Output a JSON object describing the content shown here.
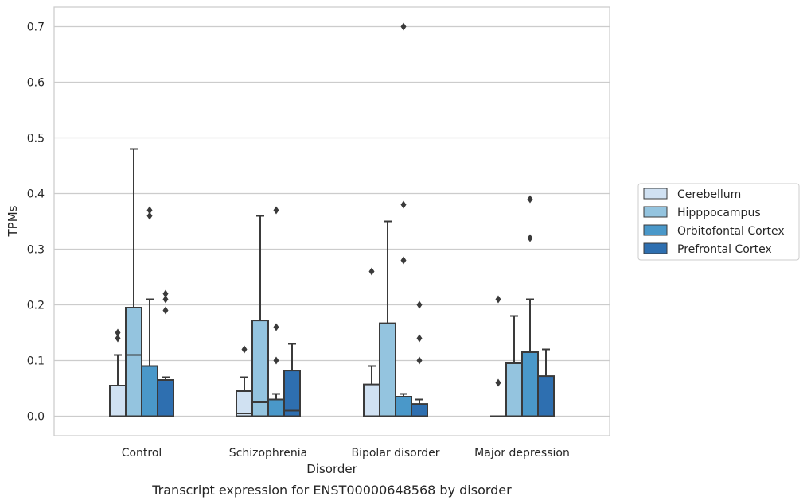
{
  "chart_data": {
    "type": "box",
    "xlabel": "Disorder",
    "ylabel": "TPMs",
    "caption": "Transcript expression for ENST00000648568 by disorder",
    "ylim": [
      -0.035,
      0.735
    ],
    "yticks": [
      "0.0",
      "0.1",
      "0.2",
      "0.3",
      "0.4",
      "0.5",
      "0.6",
      "0.7"
    ],
    "grid": "horizontal",
    "legend_position": "right",
    "categories": [
      "Control",
      "Schizophrenia",
      "Bipolar disorder",
      "Major depression"
    ],
    "series": [
      {
        "name": "Cerebellum",
        "color": "#d0e1f2",
        "boxes": [
          {
            "q1": 0.0,
            "median": 0.0,
            "q3": 0.055,
            "whisker_low": 0.0,
            "whisker_high": 0.11,
            "outliers": [
              0.14,
              0.15
            ]
          },
          {
            "q1": 0.0,
            "median": 0.005,
            "q3": 0.045,
            "whisker_low": 0.0,
            "whisker_high": 0.07,
            "outliers": [
              0.12
            ]
          },
          {
            "q1": 0.0,
            "median": 0.0,
            "q3": 0.057,
            "whisker_low": 0.0,
            "whisker_high": 0.09,
            "outliers": [
              0.26
            ]
          },
          {
            "q1": 0.0,
            "median": 0.0,
            "q3": 0.0,
            "whisker_low": 0.0,
            "whisker_high": 0.0,
            "outliers": [
              0.06,
              0.21
            ]
          }
        ]
      },
      {
        "name": "Hipppocampus",
        "color": "#94c4df",
        "boxes": [
          {
            "q1": 0.0,
            "median": 0.11,
            "q3": 0.195,
            "whisker_low": 0.0,
            "whisker_high": 0.48,
            "outliers": []
          },
          {
            "q1": 0.0,
            "median": 0.025,
            "q3": 0.172,
            "whisker_low": 0.0,
            "whisker_high": 0.36,
            "outliers": []
          },
          {
            "q1": 0.0,
            "median": 0.0,
            "q3": 0.167,
            "whisker_low": 0.0,
            "whisker_high": 0.35,
            "outliers": []
          },
          {
            "q1": 0.0,
            "median": 0.0,
            "q3": 0.095,
            "whisker_low": 0.0,
            "whisker_high": 0.18,
            "outliers": []
          }
        ]
      },
      {
        "name": "Orbitofontal Cortex",
        "color": "#4a98c9",
        "boxes": [
          {
            "q1": 0.0,
            "median": 0.0,
            "q3": 0.09,
            "whisker_low": 0.0,
            "whisker_high": 0.21,
            "outliers": [
              0.36,
              0.37
            ]
          },
          {
            "q1": 0.0,
            "median": 0.0,
            "q3": 0.03,
            "whisker_low": 0.0,
            "whisker_high": 0.04,
            "outliers": [
              0.1,
              0.16,
              0.37
            ]
          },
          {
            "q1": 0.0,
            "median": 0.0,
            "q3": 0.035,
            "whisker_low": 0.0,
            "whisker_high": 0.04,
            "outliers": [
              0.28,
              0.38,
              0.7
            ]
          },
          {
            "q1": 0.0,
            "median": 0.0,
            "q3": 0.115,
            "whisker_low": 0.0,
            "whisker_high": 0.21,
            "outliers": [
              0.32,
              0.39
            ]
          }
        ]
      },
      {
        "name": "Prefrontal Cortex",
        "color": "#2e6fb0",
        "boxes": [
          {
            "q1": 0.0,
            "median": 0.0,
            "q3": 0.065,
            "whisker_low": 0.0,
            "whisker_high": 0.07,
            "outliers": [
              0.19,
              0.21,
              0.22
            ]
          },
          {
            "q1": 0.0,
            "median": 0.01,
            "q3": 0.082,
            "whisker_low": 0.0,
            "whisker_high": 0.13,
            "outliers": []
          },
          {
            "q1": 0.0,
            "median": 0.0,
            "q3": 0.022,
            "whisker_low": 0.0,
            "whisker_high": 0.03,
            "outliers": [
              0.1,
              0.14,
              0.2
            ]
          },
          {
            "q1": 0.0,
            "median": 0.0,
            "q3": 0.072,
            "whisker_low": 0.0,
            "whisker_high": 0.12,
            "outliers": []
          }
        ]
      }
    ]
  },
  "colors": {
    "grid": "#cccccc",
    "frame": "#cccccc",
    "stroke": "#3a3a3a",
    "text": "#262626"
  }
}
